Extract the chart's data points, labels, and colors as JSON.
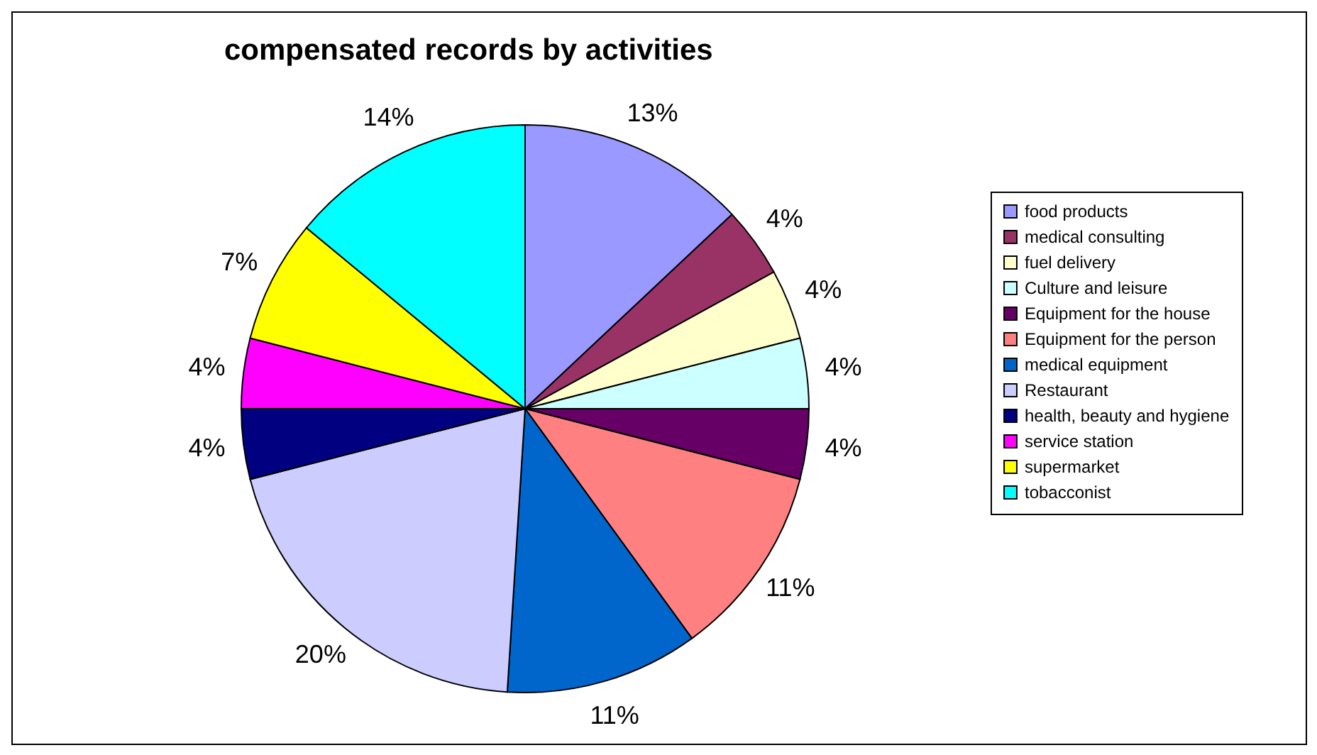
{
  "chart_data": {
    "type": "pie",
    "title": "compensated records by activities",
    "categories": [
      "food products",
      "medical consulting",
      "fuel delivery",
      "Culture and leisure",
      "Equipment for the house",
      "Equipment for the person",
      "medical equipment",
      "Restaurant",
      "health, beauty and hygiene",
      "service station",
      "supermarket",
      "tobacconist"
    ],
    "values": [
      13,
      4,
      4,
      4,
      4,
      11,
      11,
      20,
      4,
      4,
      7,
      14
    ],
    "value_labels": [
      "13%",
      "4%",
      "4%",
      "4%",
      "4%",
      "11%",
      "11%",
      "20%",
      "4%",
      "4%",
      "7%",
      "14%"
    ],
    "colors": [
      "#9999ff",
      "#993366",
      "#ffffcc",
      "#ccffff",
      "#660066",
      "#ff8080",
      "#0066cc",
      "#ccccff",
      "#000080",
      "#ff00ff",
      "#ffff00",
      "#00ffff"
    ],
    "legend": "right"
  }
}
